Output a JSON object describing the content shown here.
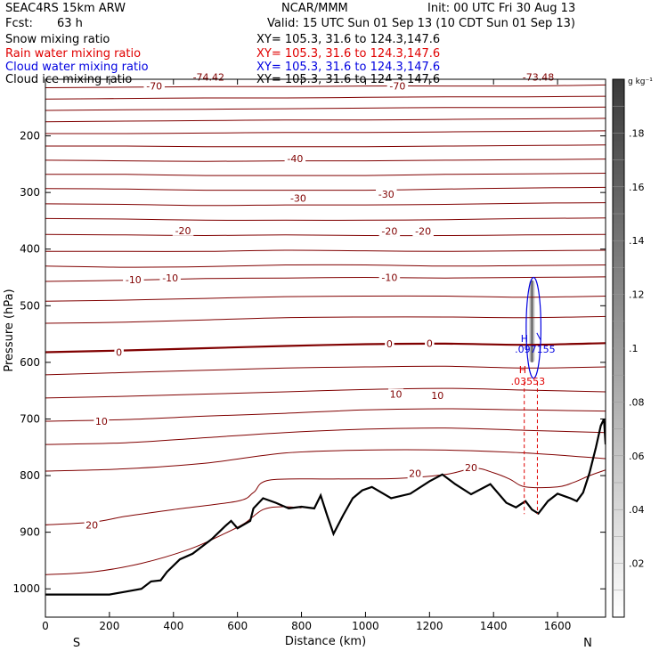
{
  "header": {
    "model": "SEAC4RS 15km ARW",
    "org": "NCAR/MMM",
    "init": "Init: 00 UTC Fri 30 Aug 13",
    "fcst_label": "Fcst:",
    "fcst_value": "63 h",
    "valid": "Valid: 15 UTC Sun 01 Sep 13 (10 CDT Sun 01 Sep 13)",
    "fields": [
      {
        "label": "Snow mixing ratio",
        "xy": "XY= 105.3, 31.6 to 124.3,147.6",
        "color": "#000000"
      },
      {
        "label": "Rain water mixing ratio",
        "xy": "XY= 105.3, 31.6 to 124.3,147.6",
        "color": "#e00000"
      },
      {
        "label": "Cloud water mixing ratio",
        "xy": "XY= 105.3, 31.6 to 124.3,147.6",
        "color": "#0000e0"
      },
      {
        "label": "Cloud ice mixing ratio",
        "xy": "XY= 105.3, 31.6 to 124.3,147.6",
        "color": "#000000"
      }
    ]
  },
  "chart_data": {
    "type": "cross-section contour",
    "xlabel": "Distance (km)",
    "ylabel": "Pressure (hPa)",
    "xlim": [
      0,
      1750
    ],
    "ylim": [
      1050,
      100
    ],
    "x_ticks": [
      "0",
      "200",
      "400",
      "600",
      "800",
      "1000",
      "1200",
      "1400",
      "1600"
    ],
    "y_ticks": [
      "200",
      "300",
      "400",
      "500",
      "600",
      "700",
      "800",
      "900",
      "1000"
    ],
    "end_labels": {
      "left": "S",
      "right": "N"
    },
    "colorbar": {
      "unit": "g kg⁻¹",
      "ticks": [
        ".02",
        ".04",
        ".06",
        ".08",
        ".1",
        ".12",
        ".14",
        ".16",
        ".18"
      ],
      "range": [
        0,
        0.2
      ]
    },
    "temperature_isotherms": {
      "color": "#800000",
      "labels": [
        {
          "text": "-74.42",
          "x": 510,
          "p": 96
        },
        {
          "text": "-73.48",
          "x": 1540,
          "p": 96
        },
        {
          "text": "-70",
          "x": 340,
          "p": 112
        },
        {
          "text": "-70",
          "x": 1100,
          "p": 112
        },
        {
          "text": "-40",
          "x": 780,
          "p": 240
        },
        {
          "text": "-30",
          "x": 790,
          "p": 310
        },
        {
          "text": "-30",
          "x": 1065,
          "p": 303
        },
        {
          "text": "-20",
          "x": 430,
          "p": 367
        },
        {
          "text": "-20",
          "x": 1075,
          "p": 368
        },
        {
          "text": "-20",
          "x": 1180,
          "p": 368
        },
        {
          "text": "-10",
          "x": 275,
          "p": 454
        },
        {
          "text": "-10",
          "x": 390,
          "p": 451
        },
        {
          "text": "-10",
          "x": 1075,
          "p": 450
        },
        {
          "text": "0",
          "x": 230,
          "p": 582
        },
        {
          "text": "0",
          "x": 1075,
          "p": 567
        },
        {
          "text": "0",
          "x": 1200,
          "p": 566
        },
        {
          "text": "10",
          "x": 175,
          "p": 704
        },
        {
          "text": "10",
          "x": 1095,
          "p": 656
        },
        {
          "text": "10",
          "x": 1225,
          "p": 658
        },
        {
          "text": "20",
          "x": 1155,
          "p": 796
        },
        {
          "text": "20",
          "x": 1330,
          "p": 786
        },
        {
          "text": "20",
          "x": 145,
          "p": 887
        }
      ]
    },
    "terrain": {
      "color": "#000000",
      "surface_pressure": [
        [
          0,
          1010
        ],
        [
          100,
          1010
        ],
        [
          200,
          1010
        ],
        [
          250,
          1005
        ],
        [
          300,
          1000
        ],
        [
          330,
          987
        ],
        [
          360,
          985
        ],
        [
          380,
          970
        ],
        [
          420,
          948
        ],
        [
          460,
          938
        ],
        [
          520,
          912
        ],
        [
          560,
          890
        ],
        [
          580,
          880
        ],
        [
          600,
          893
        ],
        [
          640,
          880
        ],
        [
          650,
          858
        ],
        [
          680,
          840
        ],
        [
          720,
          848
        ],
        [
          760,
          858
        ],
        [
          800,
          855
        ],
        [
          840,
          858
        ],
        [
          860,
          835
        ],
        [
          880,
          870
        ],
        [
          900,
          903
        ],
        [
          930,
          870
        ],
        [
          960,
          840
        ],
        [
          990,
          826
        ],
        [
          1020,
          820
        ],
        [
          1080,
          840
        ],
        [
          1140,
          832
        ],
        [
          1200,
          810
        ],
        [
          1240,
          798
        ],
        [
          1280,
          815
        ],
        [
          1330,
          833
        ],
        [
          1390,
          815
        ],
        [
          1440,
          848
        ],
        [
          1470,
          856
        ],
        [
          1500,
          845
        ],
        [
          1520,
          860
        ],
        [
          1540,
          867
        ],
        [
          1570,
          845
        ],
        [
          1600,
          832
        ],
        [
          1640,
          840
        ],
        [
          1660,
          845
        ],
        [
          1680,
          830
        ],
        [
          1700,
          795
        ],
        [
          1720,
          750
        ],
        [
          1735,
          712
        ],
        [
          1745,
          700
        ],
        [
          1750,
          745
        ]
      ]
    },
    "rain_water": {
      "color": "#e00000",
      "max_label": ".03553",
      "max_marker": "H",
      "max_at": {
        "x": 1530,
        "p": 630
      },
      "contour_range": {
        "x": [
          1496,
          1537
        ],
        "p": [
          635,
          868
        ]
      }
    },
    "cloud_water": {
      "color": "#0000e0",
      "max_label": ".097155",
      "max_marker": "H",
      "max_at": {
        "x": 1530,
        "p": 578
      },
      "contour_range": {
        "x": [
          1502,
          1548
        ],
        "p": [
          450,
          628
        ]
      }
    },
    "shaded_snow": {
      "max_gkg": 0.17,
      "center": {
        "x": 1520,
        "p": 535
      },
      "extent": {
        "x": [
          1510,
          1530
        ],
        "p": [
          455,
          600
        ]
      }
    }
  }
}
